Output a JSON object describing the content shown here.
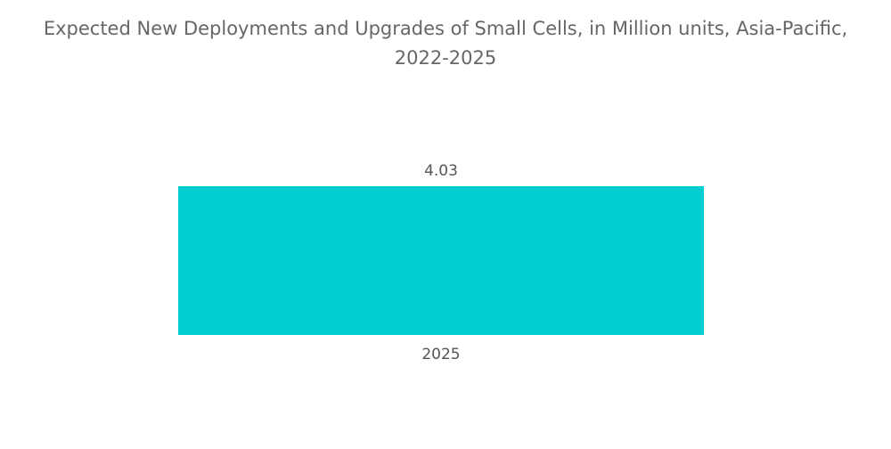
{
  "chart_data": {
    "type": "bar",
    "title_line1": "Expected New Deployments and Upgrades of Small Cells, in Million units, Asia-Pacific,",
    "title_line2": "2022-2025",
    "categories": [
      "2025"
    ],
    "values": [
      4.03
    ],
    "value_labels": [
      "4.03"
    ],
    "ylim": [
      0,
      4.03
    ],
    "grid": false,
    "legend": "none",
    "colors": {
      "bar": "#00CED1",
      "title": "#666666",
      "labels": "#555555"
    }
  }
}
